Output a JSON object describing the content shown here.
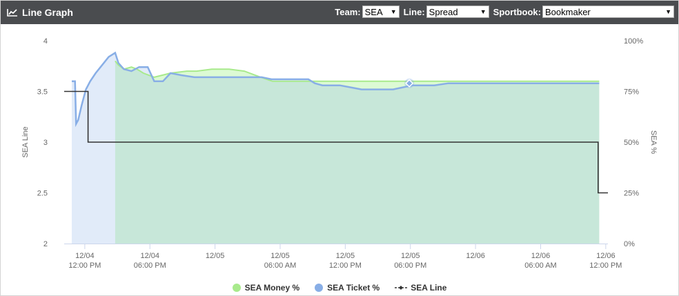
{
  "header": {
    "title": "Line Graph",
    "team_label": "Team:",
    "team_value": "SEA",
    "line_label": "Line:",
    "line_value": "Spread",
    "sportsbook_label": "Sportbook:",
    "sportsbook_value": "Bookmaker"
  },
  "legend": {
    "money": "SEA Money %",
    "ticket": "SEA Ticket %",
    "line": "SEA Line"
  },
  "colors": {
    "money": "#a8ea8c",
    "ticket": "#88aee6",
    "line": "#333333",
    "header_bg": "#4a4c4f"
  },
  "chart_data": {
    "type": "line",
    "ylabel_left": "SEA Line",
    "ylabel_right": "SEA %",
    "ylim_left": [
      2,
      4
    ],
    "ylim_right": [
      0,
      100
    ],
    "y_ticks_left": [
      "2",
      "2.5",
      "3",
      "3.5",
      "4"
    ],
    "y_ticks_right": [
      "0%",
      "25%",
      "50%",
      "75%",
      "100%"
    ],
    "x_ticks": [
      {
        "date": "12/04",
        "time": "12:00 PM",
        "t": 0
      },
      {
        "date": "12/04",
        "time": "06:00 PM",
        "t": 6
      },
      {
        "date": "12/05",
        "time": "",
        "t": 12
      },
      {
        "date": "12/05",
        "time": "06:00 AM",
        "t": 18
      },
      {
        "date": "12/05",
        "time": "12:00 PM",
        "t": 24
      },
      {
        "date": "12/05",
        "time": "06:00 PM",
        "t": 30
      },
      {
        "date": "12/06",
        "time": "",
        "t": 36
      },
      {
        "date": "12/06",
        "time": "06:00 AM",
        "t": 42
      },
      {
        "date": "12/06",
        "time": "12:00 PM",
        "t": 48
      }
    ],
    "x_range": [
      -1.9,
      48.2
    ],
    "grid": "none",
    "legend_position": "bottom",
    "series": [
      {
        "name": "SEA Money %",
        "kind": "area",
        "points": [
          [
            2.8,
            90
          ],
          [
            3.1,
            88
          ],
          [
            3.6,
            86
          ],
          [
            4.3,
            87
          ],
          [
            4.8,
            86
          ],
          [
            5.4,
            84
          ],
          [
            6.4,
            82
          ],
          [
            7.9,
            84
          ],
          [
            9.4,
            85
          ],
          [
            10.3,
            85
          ],
          [
            11.7,
            86
          ],
          [
            13.3,
            86
          ],
          [
            14.7,
            85
          ],
          [
            16.2,
            82
          ],
          [
            17.3,
            80
          ],
          [
            19.1,
            80
          ],
          [
            20.5,
            80
          ],
          [
            22.4,
            80
          ],
          [
            24.0,
            80
          ],
          [
            25.4,
            80
          ],
          [
            26.8,
            80
          ],
          [
            28.4,
            80
          ],
          [
            29.8,
            80
          ],
          [
            31.4,
            80
          ],
          [
            32.8,
            80
          ],
          [
            34.4,
            80
          ],
          [
            35.8,
            80
          ],
          [
            37.4,
            80
          ],
          [
            38.8,
            80
          ],
          [
            40.4,
            80
          ],
          [
            41.8,
            80
          ],
          [
            43.4,
            80
          ],
          [
            44.8,
            80
          ],
          [
            46.4,
            80
          ],
          [
            47.4,
            80
          ]
        ]
      },
      {
        "name": "SEA Ticket %",
        "kind": "area",
        "points": [
          [
            -1.2,
            80
          ],
          [
            -0.9,
            80
          ],
          [
            -0.8,
            59
          ],
          [
            -0.6,
            61
          ],
          [
            -0.3,
            68
          ],
          [
            -0.1,
            72
          ],
          [
            0.1,
            76
          ],
          [
            0.5,
            80
          ],
          [
            1.0,
            84
          ],
          [
            1.6,
            88
          ],
          [
            2.2,
            92
          ],
          [
            2.8,
            94
          ],
          [
            3.1,
            89
          ],
          [
            3.6,
            86
          ],
          [
            4.3,
            85
          ],
          [
            5.0,
            87
          ],
          [
            5.8,
            87
          ],
          [
            6.4,
            80
          ],
          [
            7.2,
            80
          ],
          [
            7.9,
            84
          ],
          [
            8.9,
            83
          ],
          [
            10.1,
            82
          ],
          [
            11.7,
            82
          ],
          [
            12.7,
            82
          ],
          [
            14.0,
            82
          ],
          [
            15.1,
            82
          ],
          [
            16.3,
            82
          ],
          [
            17.2,
            81
          ],
          [
            18.5,
            81
          ],
          [
            19.7,
            81
          ],
          [
            20.6,
            81
          ],
          [
            21.2,
            79
          ],
          [
            21.9,
            78
          ],
          [
            22.6,
            78
          ],
          [
            23.5,
            78
          ],
          [
            24.5,
            77
          ],
          [
            25.5,
            76
          ],
          [
            26.5,
            76
          ],
          [
            27.5,
            76
          ],
          [
            28.4,
            76
          ],
          [
            29.3,
            77
          ],
          [
            30.2,
            78
          ],
          [
            31.1,
            78
          ],
          [
            32.2,
            78
          ],
          [
            33.5,
            79
          ],
          [
            34.7,
            79
          ],
          [
            35.9,
            79
          ],
          [
            37.3,
            79
          ],
          [
            38.7,
            79
          ],
          [
            40.2,
            79
          ],
          [
            41.8,
            79
          ],
          [
            43.4,
            79
          ],
          [
            44.8,
            79
          ],
          [
            46.3,
            79
          ],
          [
            47.4,
            79
          ]
        ]
      },
      {
        "name": "SEA Line",
        "kind": "step",
        "points": [
          [
            -1.9,
            3.5
          ],
          [
            0.3,
            3.5
          ],
          [
            0.3,
            3.0
          ],
          [
            47.3,
            3.0
          ],
          [
            47.3,
            2.5
          ],
          [
            48.2,
            2.5
          ]
        ]
      }
    ],
    "marker": {
      "series": "SEA Ticket %",
      "t": 29.9,
      "y": 79
    }
  }
}
